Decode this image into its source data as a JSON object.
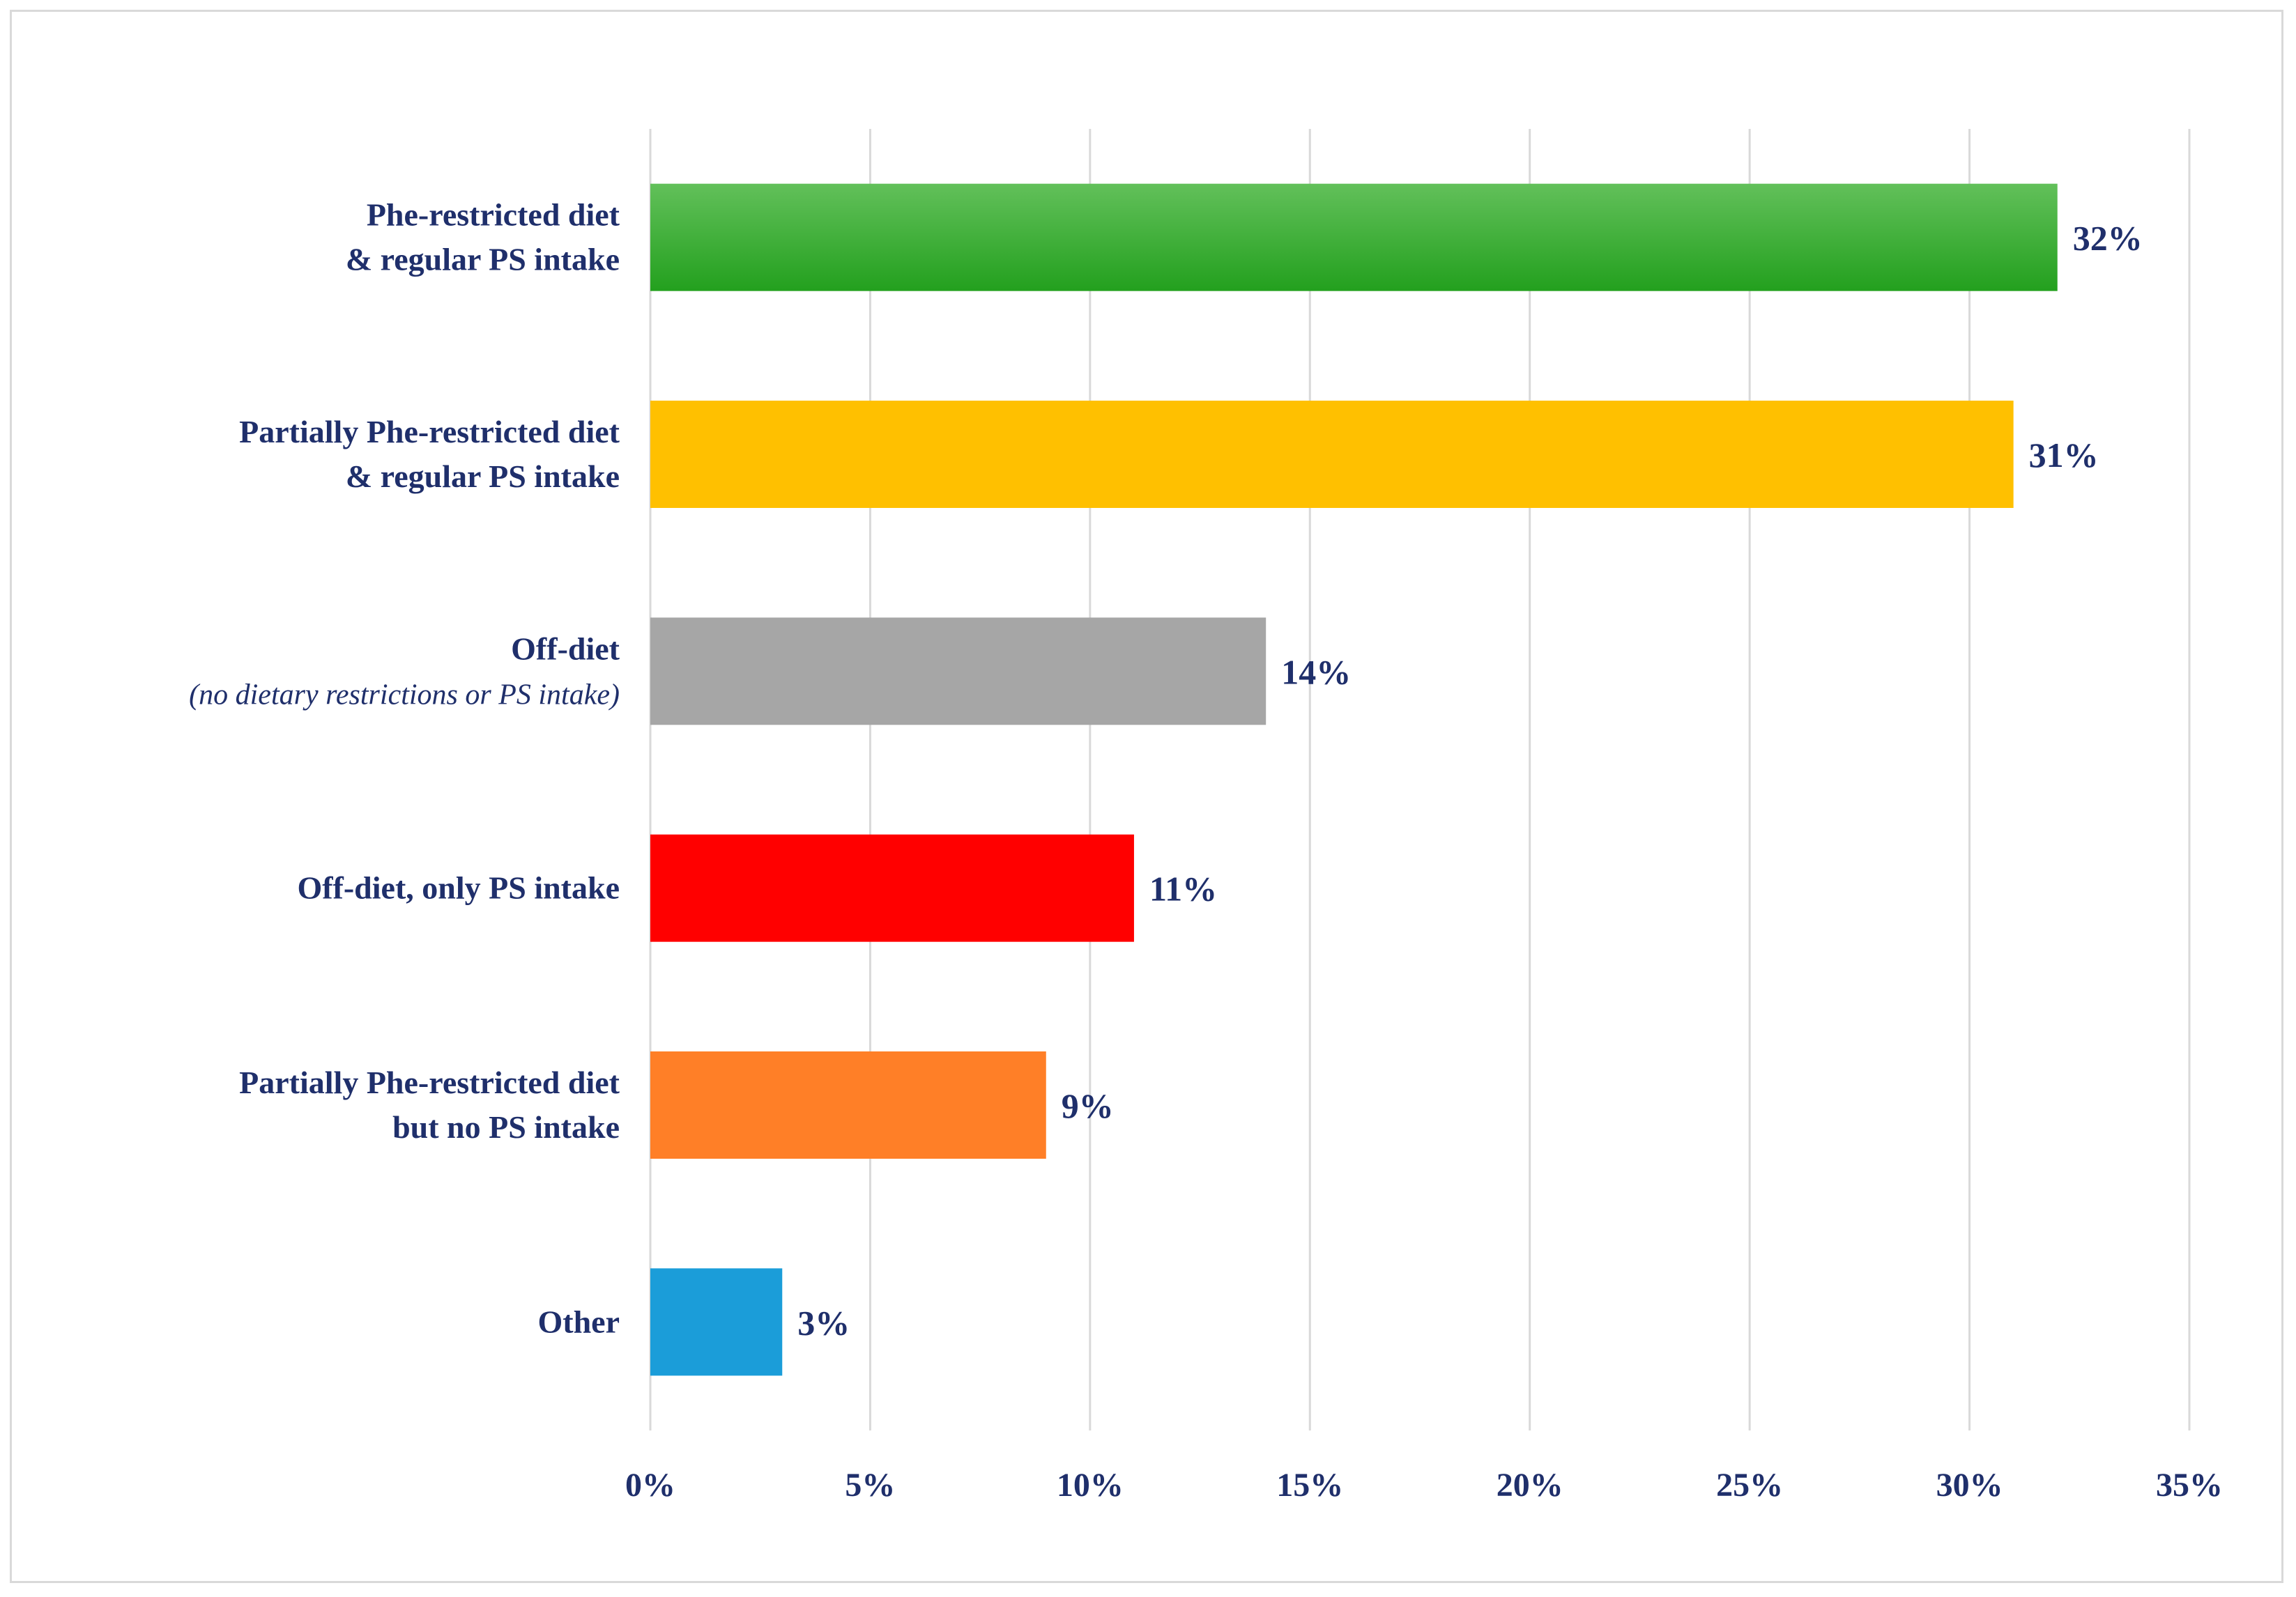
{
  "chart_data": {
    "type": "bar",
    "orientation": "horizontal",
    "title": "",
    "xlabel": "",
    "ylabel": "",
    "xlim": [
      0,
      35
    ],
    "ticks": [
      "0%",
      "5%",
      "10%",
      "15%",
      "20%",
      "25%",
      "30%",
      "35%"
    ],
    "tick_values": [
      0,
      5,
      10,
      15,
      20,
      25,
      30,
      35
    ],
    "grid": true,
    "legend": "none",
    "categories": [
      {
        "key": "phe-restricted",
        "lines": [
          "Phe-restricted  diet",
          "& regular PS intake"
        ],
        "value": 32,
        "label": "32%",
        "color": "#2ca02c"
      },
      {
        "key": "partially-phe-restricted-regular-ps",
        "lines": [
          "Partially  Phe-restricted  diet",
          "& regular PS intake"
        ],
        "value": 31,
        "label": "31%",
        "color": "#ffc000"
      },
      {
        "key": "off-diet",
        "lines": [
          "Off-diet"
        ],
        "italic_line": "(no dietary restrictions or PS intake)",
        "value": 14,
        "label": "14%",
        "color": "#a6a6a6"
      },
      {
        "key": "off-diet-only-ps",
        "lines": [
          "Off-diet,  only PS intake"
        ],
        "value": 11,
        "label": "11%",
        "color": "#ff0000"
      },
      {
        "key": "partially-phe-restricted-no-ps",
        "lines": [
          "Partially  Phe-restricted  diet",
          "but  no PS intake"
        ],
        "value": 9,
        "label": "9%",
        "color": "#ff7f27"
      },
      {
        "key": "other",
        "lines": [
          "Other"
        ],
        "value": 3,
        "label": "3%",
        "color": "#1b9dd9"
      }
    ]
  }
}
